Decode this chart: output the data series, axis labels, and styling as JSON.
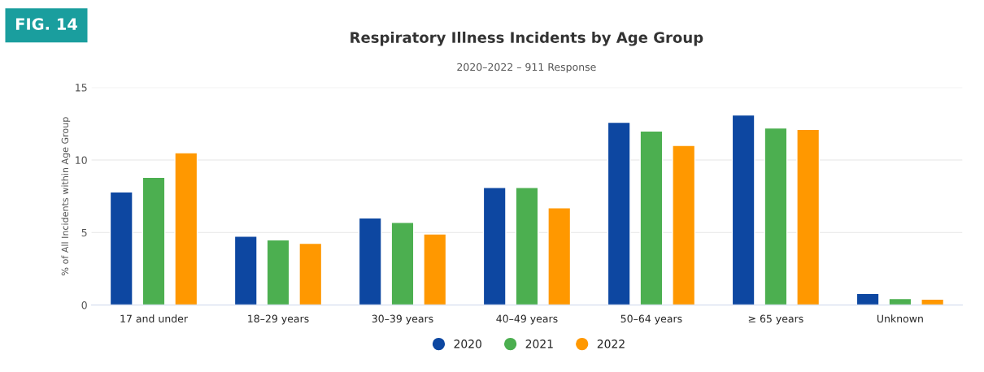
{
  "chart_data": {
    "type": "bar",
    "title": "Respiratory Illness Incidents by Age Group",
    "subtitle": "2020–2022 – 911 Response",
    "ylabel": "% of All Incidents within Age Group",
    "categories": [
      "17 and under",
      "18–29 years",
      "30–39 years",
      "40–49 years",
      "50–64 years",
      "≥ 65 years",
      "Unknown"
    ],
    "series": [
      {
        "name": "2020",
        "color": "#0d47a1",
        "values": [
          7.8,
          4.75,
          6.0,
          8.1,
          12.6,
          13.1,
          0.8
        ]
      },
      {
        "name": "2021",
        "color": "#4caf50",
        "values": [
          8.8,
          4.5,
          5.7,
          8.1,
          12.0,
          12.2,
          0.45
        ]
      },
      {
        "name": "2022",
        "color": "#ff9800",
        "values": [
          10.5,
          4.25,
          4.9,
          6.7,
          11.0,
          12.1,
          0.4
        ]
      }
    ],
    "ylim": [
      0,
      15
    ],
    "yticks": [
      0,
      5,
      10,
      15
    ],
    "grid": "y",
    "legend": "bottom",
    "annotations": [
      "FIG. 14"
    ]
  }
}
